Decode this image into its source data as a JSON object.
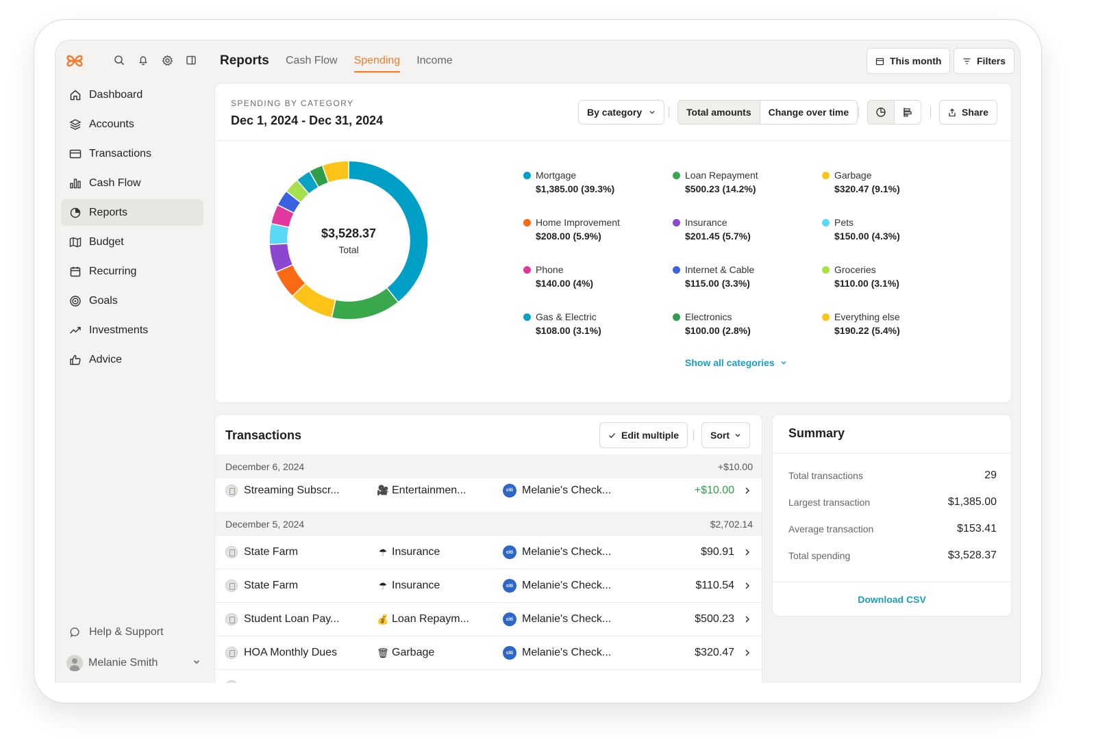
{
  "sidebar": {
    "nav": [
      {
        "label": "Dashboard",
        "icon": "home-icon"
      },
      {
        "label": "Accounts",
        "icon": "layers-icon"
      },
      {
        "label": "Transactions",
        "icon": "card-icon"
      },
      {
        "label": "Cash Flow",
        "icon": "bar-chart-icon"
      },
      {
        "label": "Reports",
        "icon": "pie-icon"
      },
      {
        "label": "Budget",
        "icon": "map-icon"
      },
      {
        "label": "Recurring",
        "icon": "calendar-icon"
      },
      {
        "label": "Goals",
        "icon": "target-icon"
      },
      {
        "label": "Investments",
        "icon": "trending-up-icon"
      },
      {
        "label": "Advice",
        "icon": "thumbs-up-icon"
      }
    ],
    "active_index": 4,
    "help_label": "Help & Support",
    "user_name": "Melanie Smith"
  },
  "header": {
    "title": "Reports",
    "tabs": [
      "Cash Flow",
      "Spending",
      "Income"
    ],
    "active_tab": "Spending",
    "period_label": "This month",
    "filters_label": "Filters"
  },
  "chart_card": {
    "eyebrow": "SPENDING BY CATEGORY",
    "date_range": "Dec 1, 2024 - Dec 31, 2024",
    "group_by_label": "By category",
    "mode_options": [
      "Total amounts",
      "Change over time"
    ],
    "share_label": "Share",
    "center_value": "$3,528.37",
    "center_label": "Total",
    "show_all_label": "Show all categories"
  },
  "chart_data": {
    "type": "pie",
    "categories": [
      {
        "name": "Mortgage",
        "label": "$1,385.00 (39.3%)",
        "value": 1385.0,
        "color": "#00a0c6"
      },
      {
        "name": "Loan Repayment",
        "label": "$500.23 (14.2%)",
        "value": 500.23,
        "color": "#3aa84d"
      },
      {
        "name": "Garbage",
        "label": "$320.47 (9.1%)",
        "value": 320.47,
        "color": "#fcc419"
      },
      {
        "name": "Home Improvement",
        "label": "$208.00 (5.9%)",
        "value": 208.0,
        "color": "#fa6a14"
      },
      {
        "name": "Insurance",
        "label": "$201.45 (5.7%)",
        "value": 201.45,
        "color": "#8b47d1"
      },
      {
        "name": "Pets",
        "label": "$150.00 (4.3%)",
        "value": 150.0,
        "color": "#5ad8f7"
      },
      {
        "name": "Phone",
        "label": "$140.00 (4%)",
        "value": 140.0,
        "color": "#e0389c"
      },
      {
        "name": "Internet & Cable",
        "label": "$115.00 (3.3%)",
        "value": 115.0,
        "color": "#3a62e0"
      },
      {
        "name": "Groceries",
        "label": "$110.00 (3.1%)",
        "value": 110.0,
        "color": "#a6e04a"
      },
      {
        "name": "Gas & Electric",
        "label": "$108.00 (3.1%)",
        "value": 108.0,
        "color": "#0aa3c4"
      },
      {
        "name": "Electronics",
        "label": "$100.00 (2.8%)",
        "value": 100.0,
        "color": "#2f9e4a"
      },
      {
        "name": "Everything else",
        "label": "$190.22 (5.4%)",
        "value": 190.22,
        "color": "#fcc419"
      }
    ]
  },
  "transactions": {
    "title": "Transactions",
    "edit_label": "Edit multiple",
    "sort_label": "Sort",
    "groups": [
      {
        "date": "December 6, 2024",
        "total": "+$10.00"
      },
      {
        "date": "December 5, 2024",
        "total": "$2,702.14"
      }
    ],
    "rows": [
      {
        "merchant": "Streaming Subscr...",
        "category_emoji": "🎥",
        "category": "Entertainmen...",
        "account": "Melanie's Check...",
        "amount": "+$10.00"
      },
      {
        "merchant": "State Farm",
        "category_emoji": "☂",
        "category": "Insurance",
        "account": "Melanie's Check...",
        "amount": "$90.91"
      },
      {
        "merchant": "State Farm",
        "category_emoji": "☂",
        "category": "Insurance",
        "account": "Melanie's Check...",
        "amount": "$110.54"
      },
      {
        "merchant": "Student Loan Pay...",
        "category_emoji": "💰",
        "category": "Loan Repaym...",
        "account": "Melanie's Check...",
        "amount": "$500.23"
      },
      {
        "merchant": "HOA Monthly Dues",
        "category_emoji": "🗑",
        "category": "Garbage",
        "account": "Melanie's Check...",
        "amount": "$320.47"
      }
    ],
    "bank_logo_text": "citi"
  },
  "summary": {
    "title": "Summary",
    "rows": [
      {
        "label": "Total transactions",
        "value": "29"
      },
      {
        "label": "Largest transaction",
        "value": "$1,385.00"
      },
      {
        "label": "Average transaction",
        "value": "$153.41"
      },
      {
        "label": "Total spending",
        "value": "$3,528.37"
      }
    ],
    "download_label": "Download CSV"
  },
  "colors": {
    "accent": "#f07a2a",
    "link": "#1a9ec0",
    "positive": "#2e9e4a"
  }
}
